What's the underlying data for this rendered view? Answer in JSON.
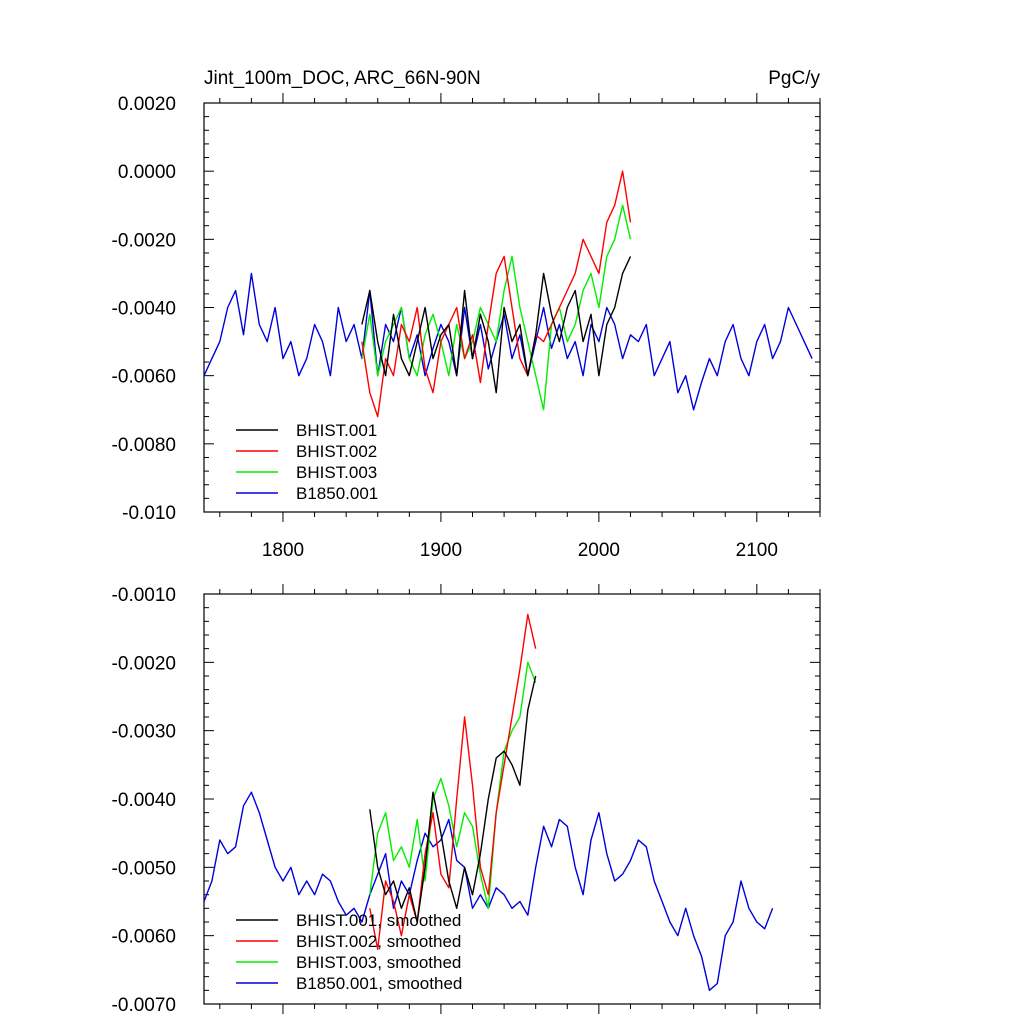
{
  "chart_data": [
    {
      "type": "line",
      "title": "Jint_100m_DOC, ARC_66N-90N",
      "units": "PgC/y",
      "xlim": [
        1750,
        2140
      ],
      "ylim": [
        -0.01,
        0.002
      ],
      "x_ticks": [
        1800,
        1900,
        2000,
        2100
      ],
      "x_tick_labels": [
        "1800",
        "1900",
        "2000",
        "2100"
      ],
      "y_ticks": [
        -0.01,
        -0.008,
        -0.006,
        -0.004,
        -0.002,
        0.0,
        0.002
      ],
      "y_tick_labels": [
        "-0.010",
        "-0.0080",
        "-0.0060",
        "-0.0040",
        "-0.0020",
        "0.0000",
        "0.0020"
      ],
      "legend_position": "bottom-left",
      "series": [
        {
          "name": "BHIST.001",
          "color": "#000000",
          "x_start": 1850,
          "x_step": 5,
          "values": [
            -0.0045,
            -0.0035,
            -0.005,
            -0.006,
            -0.0042,
            -0.0055,
            -0.006,
            -0.005,
            -0.004,
            -0.0055,
            -0.0048,
            -0.0045,
            -0.006,
            -0.0035,
            -0.0055,
            -0.0042,
            -0.005,
            -0.0065,
            -0.004,
            -0.005,
            -0.0045,
            -0.006,
            -0.0048,
            -0.003,
            -0.0042,
            -0.005,
            -0.004,
            -0.0035,
            -0.005,
            -0.0042,
            -0.006,
            -0.0045,
            -0.004,
            -0.003,
            -0.0025
          ]
        },
        {
          "name": "BHIST.002",
          "color": "#ff0000",
          "x_start": 1850,
          "x_step": 5,
          "values": [
            -0.005,
            -0.0065,
            -0.0072,
            -0.0055,
            -0.006,
            -0.0045,
            -0.005,
            -0.004,
            -0.0058,
            -0.0065,
            -0.005,
            -0.0045,
            -0.004,
            -0.0055,
            -0.0048,
            -0.0062,
            -0.0045,
            -0.003,
            -0.0025,
            -0.004,
            -0.0055,
            -0.006,
            -0.0048,
            -0.005,
            -0.0045,
            -0.004,
            -0.0035,
            -0.003,
            -0.002,
            -0.0025,
            -0.003,
            -0.0015,
            -0.001,
            0.0,
            -0.0015
          ]
        },
        {
          "name": "BHIST.003",
          "color": "#00ee00",
          "x_start": 1850,
          "x_step": 5,
          "values": [
            -0.0055,
            -0.0042,
            -0.006,
            -0.005,
            -0.0045,
            -0.004,
            -0.0055,
            -0.006,
            -0.0048,
            -0.0042,
            -0.005,
            -0.006,
            -0.0045,
            -0.0055,
            -0.005,
            -0.004,
            -0.0045,
            -0.005,
            -0.0035,
            -0.0025,
            -0.004,
            -0.005,
            -0.006,
            -0.007,
            -0.0045,
            -0.004,
            -0.005,
            -0.0045,
            -0.0035,
            -0.003,
            -0.004,
            -0.0025,
            -0.002,
            -0.001,
            -0.002
          ]
        },
        {
          "name": "B1850.001",
          "color": "#0000dd",
          "x_start": 1750,
          "x_step": 5,
          "values": [
            -0.006,
            -0.0055,
            -0.005,
            -0.004,
            -0.0035,
            -0.0048,
            -0.003,
            -0.0045,
            -0.005,
            -0.004,
            -0.0055,
            -0.005,
            -0.006,
            -0.0055,
            -0.0045,
            -0.005,
            -0.006,
            -0.004,
            -0.005,
            -0.0045,
            -0.0055,
            -0.0035,
            -0.006,
            -0.0045,
            -0.005,
            -0.004,
            -0.0055,
            -0.0048,
            -0.006,
            -0.0052,
            -0.0045,
            -0.005,
            -0.006,
            -0.004,
            -0.0055,
            -0.0045,
            -0.0058,
            -0.005,
            -0.0042,
            -0.0055,
            -0.0048,
            -0.006,
            -0.005,
            -0.004,
            -0.0052,
            -0.0045,
            -0.0055,
            -0.005,
            -0.006,
            -0.0045,
            -0.005,
            -0.004,
            -0.0045,
            -0.0055,
            -0.0048,
            -0.005,
            -0.0045,
            -0.006,
            -0.0055,
            -0.005,
            -0.0065,
            -0.006,
            -0.007,
            -0.0062,
            -0.0055,
            -0.006,
            -0.005,
            -0.0045,
            -0.0055,
            -0.006,
            -0.005,
            -0.0045,
            -0.0055,
            -0.005,
            -0.004,
            -0.0045,
            -0.005,
            -0.0055
          ]
        }
      ]
    },
    {
      "type": "line",
      "title": "",
      "xlim": [
        1750,
        2140
      ],
      "ylim": [
        -0.007,
        -0.001
      ],
      "x_ticks": [
        1800,
        1900,
        2000,
        2100
      ],
      "x_tick_labels": [],
      "y_ticks": [
        -0.007,
        -0.006,
        -0.005,
        -0.004,
        -0.003,
        -0.002,
        -0.001
      ],
      "y_tick_labels": [
        "-0.0070",
        "-0.0060",
        "-0.0050",
        "-0.0040",
        "-0.0030",
        "-0.0020",
        "-0.0010"
      ],
      "legend_position": "bottom-left",
      "series": [
        {
          "name": "BHIST.001, smoothed",
          "color": "#000000",
          "x_start": 1855,
          "x_step": 5,
          "values": [
            -0.00415,
            -0.005,
            -0.0054,
            -0.0052,
            -0.0056,
            -0.0053,
            -0.0058,
            -0.005,
            -0.0039,
            -0.0045,
            -0.0052,
            -0.0056,
            -0.005,
            -0.0054,
            -0.0048,
            -0.004,
            -0.0034,
            -0.0033,
            -0.0035,
            -0.0038,
            -0.0027,
            -0.0022
          ]
        },
        {
          "name": "BHIST.002, smoothed",
          "color": "#ff0000",
          "x_start": 1855,
          "x_step": 5,
          "values": [
            -0.0056,
            -0.0062,
            -0.0052,
            -0.0055,
            -0.006,
            -0.0054,
            -0.0058,
            -0.0048,
            -0.0042,
            -0.0051,
            -0.0053,
            -0.004,
            -0.0028,
            -0.0038,
            -0.005,
            -0.0054,
            -0.0042,
            -0.0035,
            -0.0028,
            -0.0021,
            -0.0013,
            -0.0018
          ]
        },
        {
          "name": "BHIST.003, smoothed",
          "color": "#00ee00",
          "x_start": 1855,
          "x_step": 5,
          "values": [
            -0.0054,
            -0.0045,
            -0.0042,
            -0.0049,
            -0.0047,
            -0.005,
            -0.0043,
            -0.0052,
            -0.004,
            -0.0037,
            -0.0041,
            -0.0047,
            -0.0042,
            -0.0044,
            -0.0051,
            -0.0056,
            -0.0042,
            -0.0033,
            -0.003,
            -0.0028,
            -0.002,
            -0.0023
          ]
        },
        {
          "name": "B1850.001, smoothed",
          "color": "#0000dd",
          "x_start": 1750,
          "x_step": 5,
          "values": [
            -0.0055,
            -0.0052,
            -0.0046,
            -0.0048,
            -0.0047,
            -0.0041,
            -0.0039,
            -0.0042,
            -0.0046,
            -0.005,
            -0.0052,
            -0.005,
            -0.0054,
            -0.0052,
            -0.0054,
            -0.0051,
            -0.0052,
            -0.0055,
            -0.0057,
            -0.0056,
            -0.0058,
            -0.0054,
            -0.0051,
            -0.0048,
            -0.0056,
            -0.0052,
            -0.0054,
            -0.0049,
            -0.0045,
            -0.0047,
            -0.0046,
            -0.0043,
            -0.0049,
            -0.005,
            -0.0056,
            -0.0054,
            -0.0056,
            -0.0053,
            -0.0054,
            -0.0056,
            -0.0055,
            -0.0057,
            -0.005,
            -0.0044,
            -0.0047,
            -0.0043,
            -0.0044,
            -0.005,
            -0.0054,
            -0.0046,
            -0.0042,
            -0.0048,
            -0.0052,
            -0.0051,
            -0.0049,
            -0.0046,
            -0.0047,
            -0.0052,
            -0.0055,
            -0.0058,
            -0.006,
            -0.0056,
            -0.006,
            -0.0063,
            -0.0068,
            -0.0067,
            -0.006,
            -0.0058,
            -0.0052,
            -0.0056,
            -0.0058,
            -0.0059,
            -0.0056
          ]
        }
      ]
    }
  ]
}
